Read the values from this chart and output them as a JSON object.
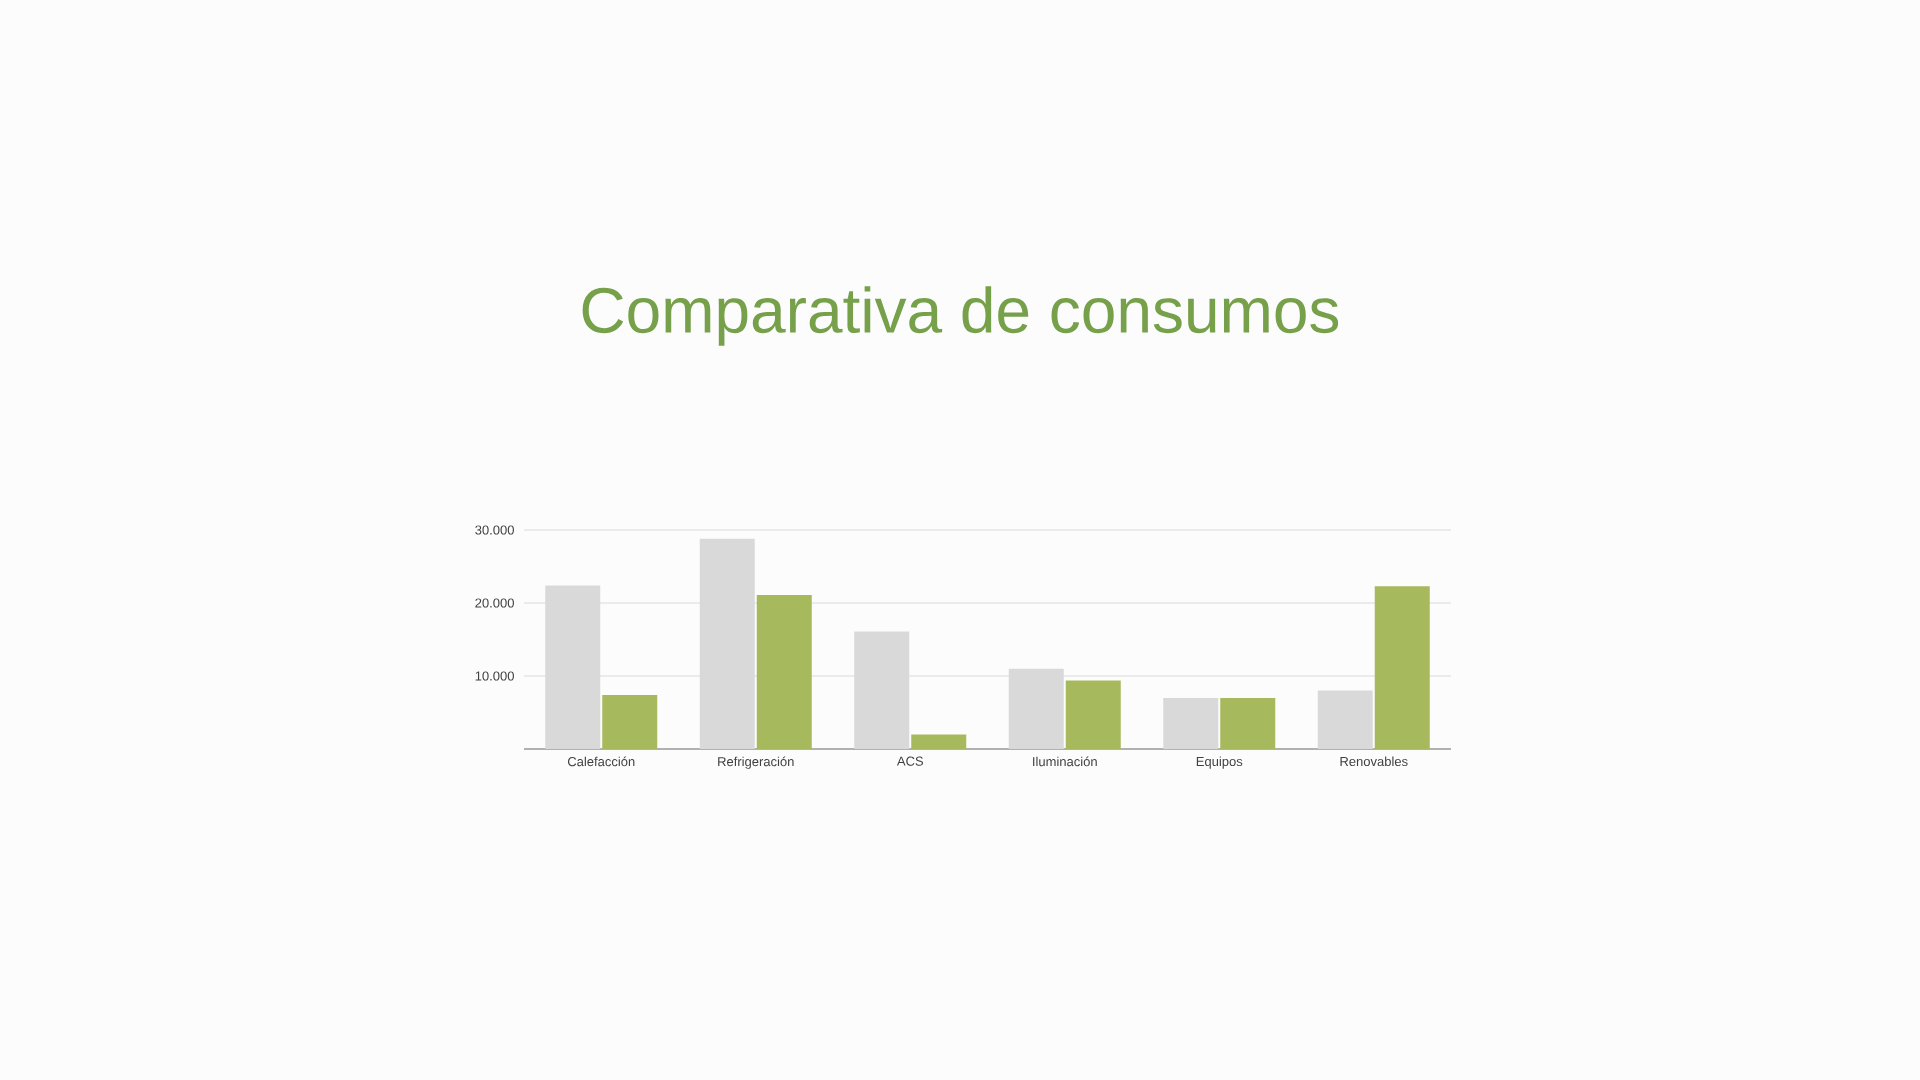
{
  "chart_data": {
    "type": "bar",
    "title": "Comparativa de consumos",
    "categories": [
      "Calefacción",
      "Refrigeración",
      "ACS",
      "Iluminación",
      "Equipos",
      "Renovables"
    ],
    "series": [
      {
        "color": "#d9d9d9",
        "values": [
          22400,
          28800,
          16100,
          11000,
          7000,
          8000
        ]
      },
      {
        "color": "#a6b95c",
        "values": [
          7400,
          21100,
          2000,
          9400,
          7000,
          22300
        ]
      }
    ],
    "ylim": [
      0,
      30000
    ],
    "yticks": [
      {
        "value": 10000,
        "label": "10.000"
      },
      {
        "value": 20000,
        "label": "20.000"
      },
      {
        "value": 30000,
        "label": "30.000"
      }
    ],
    "grid": "y"
  }
}
